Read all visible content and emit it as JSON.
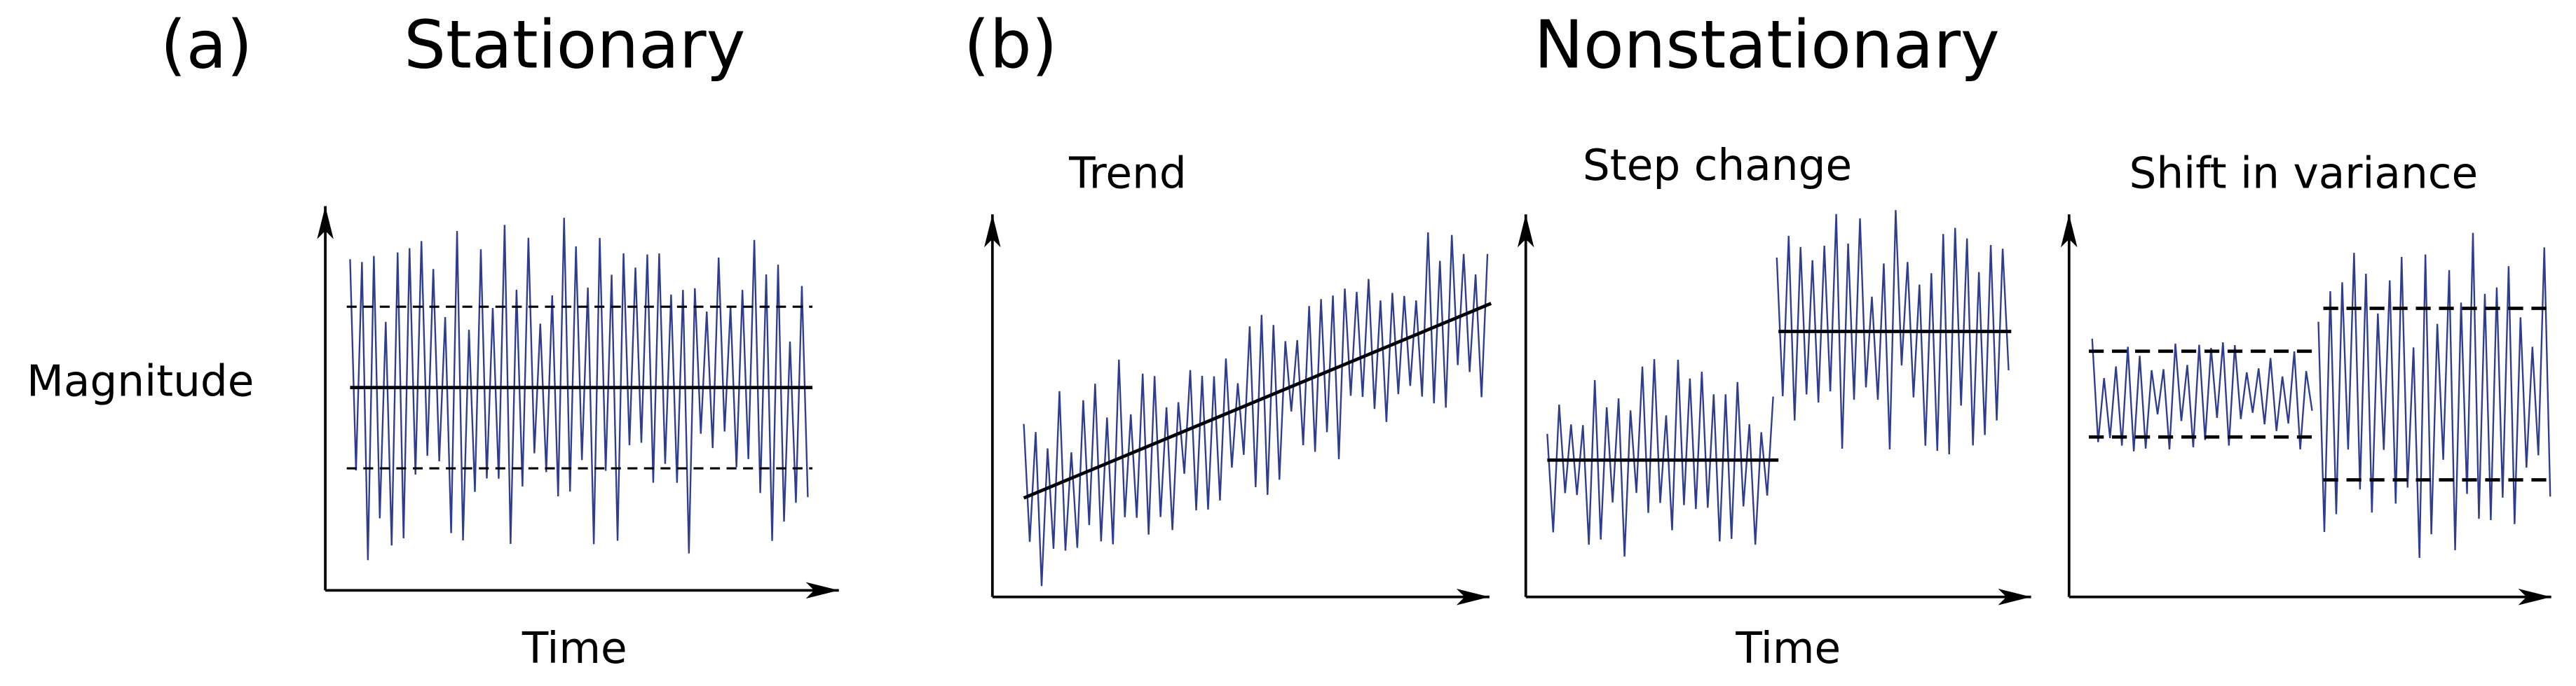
{
  "panel_a": {
    "label": "(a)",
    "title": "Stationary",
    "y_label": "Magnitude",
    "x_label": "Time"
  },
  "panel_b": {
    "label": "(b)",
    "title": "Nonstationary",
    "x_label": "Time",
    "subpanels": [
      {
        "title": "Trend"
      },
      {
        "title": "Step change"
      },
      {
        "title": "Shift in variance"
      }
    ]
  }
}
